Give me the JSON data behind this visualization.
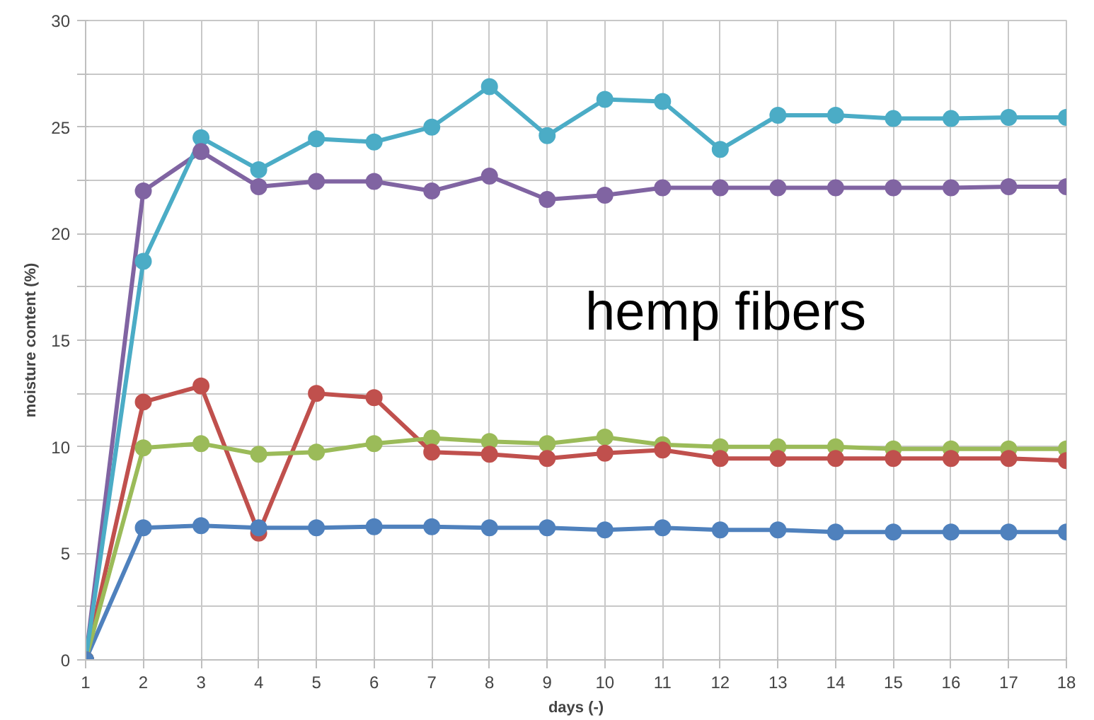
{
  "chart_data": {
    "type": "line",
    "xlabel": "days (-)",
    "ylabel": "moisture content (%)",
    "annotations": [
      "hemp fibers"
    ],
    "x": [
      1,
      2,
      3,
      4,
      5,
      6,
      7,
      8,
      9,
      10,
      11,
      12,
      13,
      14,
      15,
      16,
      17,
      18
    ],
    "xlim": [
      1,
      18
    ],
    "xticks": [
      1,
      2,
      3,
      4,
      5,
      6,
      7,
      8,
      9,
      10,
      11,
      12,
      13,
      14,
      15,
      16,
      17,
      18
    ],
    "ylim": [
      0,
      30
    ],
    "yticks": [
      0,
      {
        "value": 2.5,
        "label": null
      },
      5,
      {
        "value": 7.5,
        "label": null
      },
      10,
      {
        "value": 12.5,
        "label": null
      },
      15,
      {
        "value": 17.5,
        "label": null
      },
      20,
      {
        "value": 22.5,
        "label": null
      },
      25,
      {
        "value": 27.5,
        "label": null
      },
      30
    ],
    "grid": true,
    "marker": "circle",
    "line_style": "solid",
    "series": [
      {
        "color": "#4f81bd",
        "values": [
          0,
          6.2,
          6.3,
          6.2,
          6.2,
          6.25,
          6.25,
          6.2,
          6.2,
          6.1,
          6.2,
          6.1,
          6.1,
          6.0,
          6.0,
          6.0,
          6.0,
          6.0
        ]
      },
      {
        "color": "#c0504d",
        "values": [
          0,
          12.1,
          12.85,
          5.95,
          12.5,
          12.3,
          9.75,
          9.65,
          9.45,
          9.7,
          9.85,
          9.45,
          9.45,
          9.45,
          9.45,
          9.45,
          9.45,
          9.35
        ]
      },
      {
        "color": "#9bbb59",
        "values": [
          0,
          9.95,
          10.15,
          9.65,
          9.75,
          10.15,
          10.4,
          10.25,
          10.15,
          10.45,
          10.1,
          10.0,
          10.0,
          10.0,
          9.9,
          9.9,
          9.9,
          9.9
        ]
      },
      {
        "color": "#8064a2",
        "values": [
          0,
          22.0,
          23.85,
          22.2,
          22.45,
          22.45,
          22.0,
          22.7,
          21.6,
          21.8,
          22.15,
          22.15,
          22.15,
          22.15,
          22.15,
          22.15,
          22.2,
          22.2
        ]
      },
      {
        "color": "#4bacc6",
        "values": [
          0,
          18.7,
          24.5,
          23.0,
          24.45,
          24.3,
          25.0,
          26.9,
          24.6,
          26.3,
          26.2,
          23.95,
          25.55,
          25.55,
          25.4,
          25.4,
          25.45,
          25.45
        ]
      }
    ]
  }
}
